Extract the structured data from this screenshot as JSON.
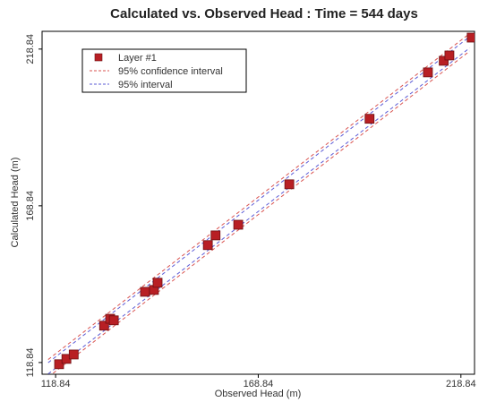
{
  "chart_data": {
    "type": "scatter",
    "title": "Calculated vs. Observed Head : Time = 544 days",
    "x_label": "Observed Head (m)",
    "y_label": "Calculated Head (m)",
    "xlim": [
      115.5,
      222.2
    ],
    "ylim": [
      115.1,
      224.5
    ],
    "xticks": [
      118.84,
      168.84,
      218.84
    ],
    "yticks": [
      118.84,
      168.84,
      218.84
    ],
    "grid": false,
    "legend": "upper left",
    "series": [
      {
        "name": "Layer #1",
        "type": "scatter",
        "color": "#b81f24",
        "x": [
          119.7,
          121.5,
          123.3,
          130.8,
          132.3,
          133.2,
          140.9,
          143.1,
          144.0,
          156.4,
          158.3,
          163.9,
          176.5,
          196.3,
          210.7,
          214.6,
          216.0,
          221.5
        ],
        "values": [
          118.3,
          120.0,
          121.4,
          130.6,
          132.8,
          132.3,
          141.4,
          142.0,
          144.3,
          156.3,
          159.4,
          162.8,
          175.7,
          196.6,
          211.4,
          215.1,
          216.8,
          222.5
        ]
      },
      {
        "name": "95% confidence interval",
        "type": "band",
        "color": "#d9534f",
        "x": [
          117,
          221
        ],
        "lower": [
          114.2,
          218.2
        ],
        "upper": [
          119.8,
          223.8
        ]
      },
      {
        "name": "95% interval",
        "type": "band",
        "color": "#5b5bd6",
        "x": [
          117,
          221
        ],
        "lower": [
          115.2,
          219.2
        ],
        "upper": [
          118.8,
          222.8
        ]
      }
    ]
  }
}
